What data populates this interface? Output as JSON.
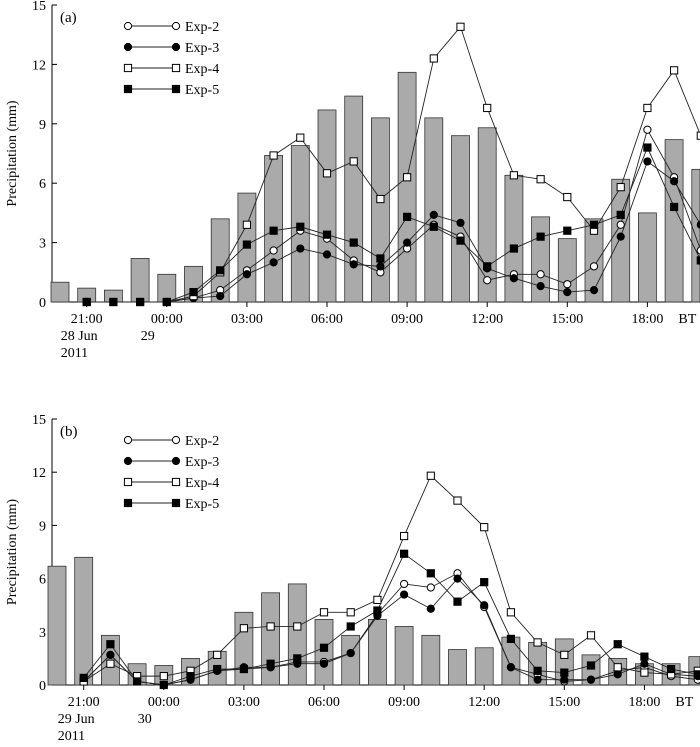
{
  "chart_data": [
    {
      "type": "bar",
      "panel_label": "(a)",
      "ylabel": "Precipitation (mm)",
      "ylim": [
        0,
        15
      ],
      "yticks": [
        0,
        3,
        6,
        9,
        12,
        15
      ],
      "xticks": [
        {
          "index": 1,
          "lines": [
            "21:00",
            "28  Jun",
            "2011"
          ]
        },
        {
          "index": 4,
          "lines": [
            "00:00",
            "29"
          ]
        },
        {
          "index": 7,
          "lines": [
            "03:00"
          ]
        },
        {
          "index": 10,
          "lines": [
            "06:00"
          ]
        },
        {
          "index": 13,
          "lines": [
            "09:00"
          ]
        },
        {
          "index": 16,
          "lines": [
            "12:00"
          ]
        },
        {
          "index": 19,
          "lines": [
            "15:00"
          ]
        },
        {
          "index": 22,
          "lines": [
            "18:00"
          ]
        }
      ],
      "time_zone_label": "BT",
      "observed_bars": [
        1.0,
        0.7,
        0.6,
        2.2,
        1.4,
        1.8,
        4.2,
        5.5,
        7.4,
        7.9,
        9.7,
        10.4,
        9.3,
        11.6,
        9.3,
        8.4,
        8.8,
        6.4,
        4.3,
        3.2,
        4.2,
        6.2,
        4.5,
        8.2,
        6.7
      ],
      "series": [
        {
          "name": "Exp-2",
          "marker": "open-circle",
          "values": [
            null,
            0.0,
            0.0,
            0.0,
            0.0,
            0.2,
            0.6,
            1.6,
            2.6,
            3.6,
            3.2,
            2.1,
            1.5,
            2.7,
            3.9,
            3.3,
            1.1,
            1.4,
            1.4,
            0.9,
            1.8,
            3.9,
            8.7,
            6.3,
            2.6
          ]
        },
        {
          "name": "Exp-3",
          "marker": "filled-circle",
          "values": [
            null,
            0.0,
            0.0,
            0.0,
            0.0,
            0.2,
            0.3,
            1.4,
            2.0,
            2.7,
            2.4,
            1.9,
            1.8,
            3.0,
            4.4,
            4.0,
            1.7,
            1.2,
            0.8,
            0.5,
            0.6,
            3.3,
            7.1,
            6.1,
            3.9
          ]
        },
        {
          "name": "Exp-4",
          "marker": "open-square",
          "values": [
            null,
            0.0,
            0.0,
            0.0,
            0.0,
            0.3,
            1.5,
            3.9,
            7.4,
            8.3,
            6.5,
            7.1,
            5.2,
            6.3,
            12.3,
            13.9,
            9.8,
            6.4,
            6.2,
            5.3,
            3.6,
            5.8,
            9.8,
            11.7,
            8.4
          ]
        },
        {
          "name": "Exp-5",
          "marker": "filled-square",
          "values": [
            null,
            0.0,
            0.0,
            0.0,
            0.0,
            0.5,
            1.6,
            2.9,
            3.6,
            3.8,
            3.4,
            3.0,
            2.2,
            4.3,
            3.8,
            3.1,
            1.8,
            2.7,
            3.3,
            3.6,
            3.9,
            4.4,
            7.8,
            4.8,
            2.1
          ]
        }
      ]
    },
    {
      "type": "bar",
      "panel_label": "(b)",
      "ylabel": "Precipitation (mm)",
      "ylim": [
        0,
        15
      ],
      "yticks": [
        0,
        3,
        6,
        9,
        12,
        15
      ],
      "xticks": [
        {
          "index": 1,
          "lines": [
            "21:00",
            "29  Jun",
            "2011"
          ]
        },
        {
          "index": 4,
          "lines": [
            "00:00",
            "30"
          ]
        },
        {
          "index": 7,
          "lines": [
            "03:00"
          ]
        },
        {
          "index": 10,
          "lines": [
            "06:00"
          ]
        },
        {
          "index": 13,
          "lines": [
            "09:00"
          ]
        },
        {
          "index": 16,
          "lines": [
            "12:00"
          ]
        },
        {
          "index": 19,
          "lines": [
            "15:00"
          ]
        },
        {
          "index": 22,
          "lines": [
            "18:00"
          ]
        }
      ],
      "time_zone_label": "BT",
      "observed_bars": [
        6.7,
        7.2,
        2.8,
        1.2,
        1.1,
        1.5,
        1.9,
        4.1,
        5.2,
        5.7,
        3.7,
        2.8,
        3.7,
        3.3,
        2.8,
        2.0,
        2.1,
        2.7,
        2.4,
        2.6,
        1.7,
        1.5,
        1.2,
        1.2,
        1.6
      ],
      "series": [
        {
          "name": "Exp-2",
          "marker": "open-circle",
          "values": [
            null,
            0.2,
            1.7,
            0.2,
            0.0,
            0.3,
            0.8,
            0.9,
            1.0,
            1.3,
            1.3,
            1.8,
            4.0,
            5.7,
            5.5,
            6.3,
            4.4,
            1.0,
            0.6,
            0.2,
            0.3,
            0.8,
            1.0,
            0.5,
            0.3
          ]
        },
        {
          "name": "Exp-3",
          "marker": "filled-circle",
          "values": [
            null,
            0.2,
            1.7,
            0.2,
            0.0,
            0.3,
            0.8,
            1.0,
            1.0,
            1.2,
            1.2,
            1.8,
            3.9,
            5.1,
            4.3,
            6.0,
            4.5,
            1.0,
            0.3,
            0.3,
            0.3,
            0.6,
            1.2,
            0.6,
            0.5
          ]
        },
        {
          "name": "Exp-4",
          "marker": "open-square",
          "values": [
            null,
            0.2,
            1.2,
            0.5,
            0.5,
            0.8,
            1.7,
            3.2,
            3.3,
            3.3,
            4.1,
            4.1,
            4.8,
            8.4,
            11.8,
            10.4,
            8.9,
            4.1,
            2.4,
            1.7,
            2.8,
            1.0,
            0.7,
            0.6,
            0.8
          ]
        },
        {
          "name": "Exp-5",
          "marker": "filled-square",
          "values": [
            null,
            0.4,
            2.3,
            0.2,
            0.0,
            0.5,
            0.9,
            0.9,
            1.2,
            1.5,
            2.1,
            3.3,
            4.2,
            7.4,
            6.3,
            4.7,
            5.8,
            2.6,
            0.8,
            0.7,
            1.1,
            2.3,
            1.6,
            0.9,
            0.6
          ]
        }
      ]
    }
  ]
}
